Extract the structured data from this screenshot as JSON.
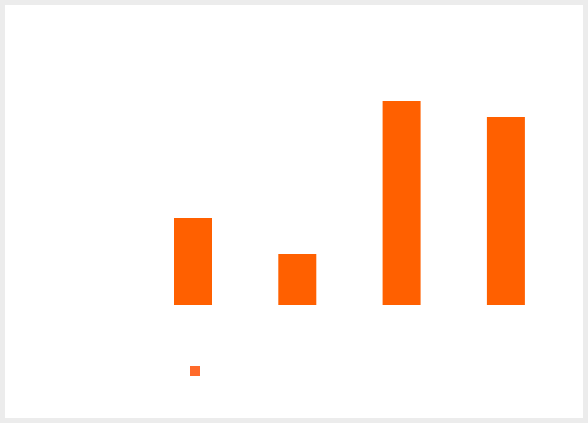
{
  "chart_data": {
    "type": "bar",
    "categories": [
      "",
      "",
      "",
      ""
    ],
    "values": [
      87,
      51,
      204,
      188
    ],
    "ylim": [
      0,
      204
    ],
    "grid": false,
    "legend": "bottom-left",
    "colors": {
      "bar": "#ff6000",
      "legend_marker": "#ff6a2a"
    },
    "series": [
      {
        "values": [
          87,
          51,
          204,
          188
        ]
      }
    ]
  }
}
